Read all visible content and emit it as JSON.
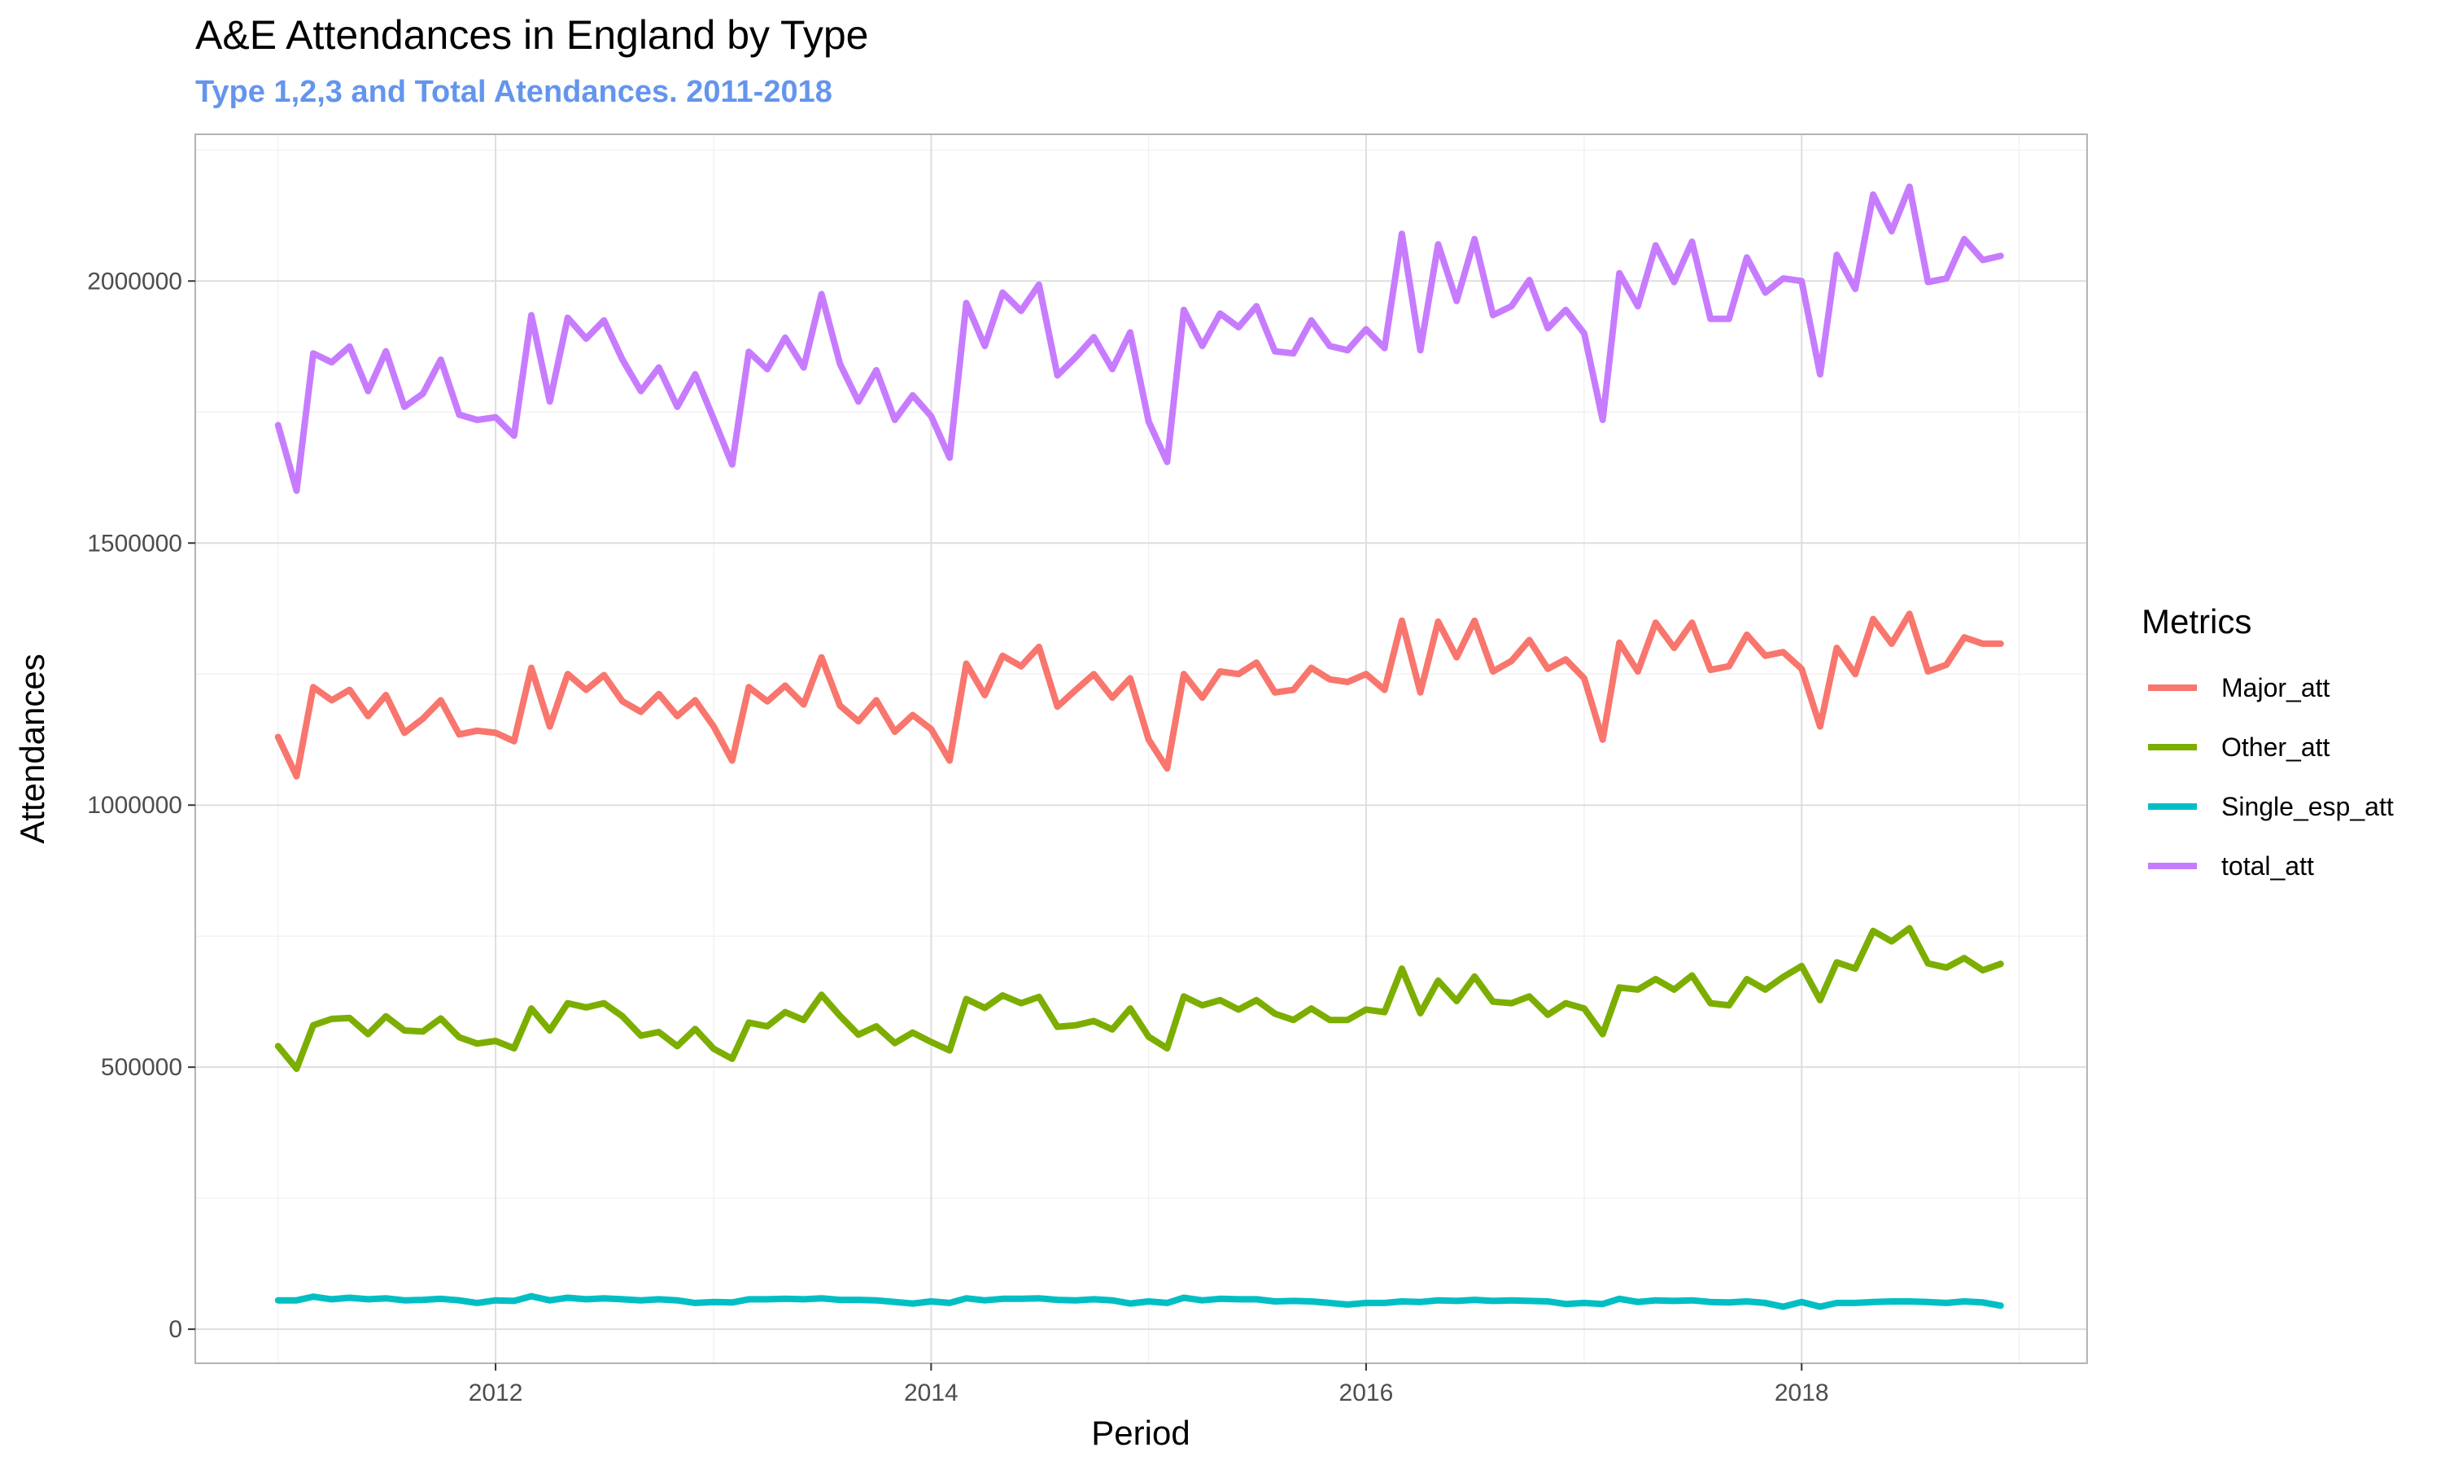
{
  "title": "A&E Attendances in England by Type",
  "subtitle": "Type 1,2,3 and Total Atendances. 2011-2018",
  "chart_data": {
    "type": "line",
    "xlabel": "Period",
    "ylabel": "Attendances",
    "x_ticks": [
      "2012",
      "2014",
      "2016",
      "2018"
    ],
    "y_ticks": [
      0,
      500000,
      1000000,
      1500000,
      2000000
    ],
    "y_tick_labels": [
      "0",
      "500000",
      "1000000",
      "1500000",
      "2000000"
    ],
    "xlim": [
      "2010-08-15",
      "2019-04-25"
    ],
    "ylim": [
      -65000,
      2280000
    ],
    "grid": true,
    "legend": {
      "title": "Metrics",
      "position": "right"
    },
    "x": [
      "2011-01",
      "2011-02",
      "2011-03",
      "2011-04",
      "2011-05",
      "2011-06",
      "2011-07",
      "2011-08",
      "2011-09",
      "2011-10",
      "2011-11",
      "2011-12",
      "2012-01",
      "2012-02",
      "2012-03",
      "2012-04",
      "2012-05",
      "2012-06",
      "2012-07",
      "2012-08",
      "2012-09",
      "2012-10",
      "2012-11",
      "2012-12",
      "2013-01",
      "2013-02",
      "2013-03",
      "2013-04",
      "2013-05",
      "2013-06",
      "2013-07",
      "2013-08",
      "2013-09",
      "2013-10",
      "2013-11",
      "2013-12",
      "2014-01",
      "2014-02",
      "2014-03",
      "2014-04",
      "2014-05",
      "2014-06",
      "2014-07",
      "2014-08",
      "2014-09",
      "2014-10",
      "2014-11",
      "2014-12",
      "2015-01",
      "2015-02",
      "2015-03",
      "2015-04",
      "2015-05",
      "2015-06",
      "2015-07",
      "2015-08",
      "2015-09",
      "2015-10",
      "2015-11",
      "2015-12",
      "2016-01",
      "2016-02",
      "2016-03",
      "2016-04",
      "2016-05",
      "2016-06",
      "2016-07",
      "2016-08",
      "2016-09",
      "2016-10",
      "2016-11",
      "2016-12",
      "2017-01",
      "2017-02",
      "2017-03",
      "2017-04",
      "2017-05",
      "2017-06",
      "2017-07",
      "2017-08",
      "2017-09",
      "2017-10",
      "2017-11",
      "2017-12",
      "2018-01",
      "2018-02",
      "2018-03",
      "2018-04",
      "2018-05",
      "2018-06",
      "2018-07",
      "2018-08",
      "2018-09",
      "2018-10",
      "2018-11",
      "2018-12"
    ],
    "series": [
      {
        "name": "Major_att",
        "color": "#F8766D",
        "values": [
          1130000,
          1055000,
          1225000,
          1200000,
          1220000,
          1170000,
          1210000,
          1138000,
          1165000,
          1200000,
          1135000,
          1142000,
          1138000,
          1122000,
          1262000,
          1150000,
          1250000,
          1220000,
          1248000,
          1198000,
          1178000,
          1212000,
          1170000,
          1200000,
          1150000,
          1085000,
          1225000,
          1198000,
          1228000,
          1192000,
          1282000,
          1190000,
          1160000,
          1200000,
          1140000,
          1172000,
          1145000,
          1085000,
          1270000,
          1210000,
          1285000,
          1265000,
          1302000,
          1188000,
          1220000,
          1250000,
          1205000,
          1242000,
          1125000,
          1070000,
          1250000,
          1205000,
          1255000,
          1250000,
          1272000,
          1215000,
          1220000,
          1262000,
          1240000,
          1235000,
          1250000,
          1220000,
          1352000,
          1215000,
          1350000,
          1282000,
          1352000,
          1255000,
          1275000,
          1315000,
          1260000,
          1278000,
          1242000,
          1125000,
          1310000,
          1255000,
          1348000,
          1300000,
          1348000,
          1258000,
          1265000,
          1325000,
          1285000,
          1292000,
          1260000,
          1150000,
          1300000,
          1250000,
          1355000,
          1308000,
          1365000,
          1255000,
          1268000,
          1320000,
          1308000,
          1308000
        ]
      },
      {
        "name": "Other_att",
        "color": "#7CAE00",
        "values": [
          540000,
          497000,
          580000,
          592000,
          594000,
          563000,
          597000,
          570000,
          568000,
          593000,
          557000,
          545000,
          550000,
          536000,
          612000,
          570000,
          622000,
          614000,
          622000,
          597000,
          560000,
          567000,
          540000,
          573000,
          535000,
          516000,
          585000,
          578000,
          605000,
          590000,
          638000,
          598000,
          562000,
          578000,
          546000,
          566000,
          548000,
          532000,
          630000,
          613000,
          637000,
          622000,
          634000,
          577000,
          580000,
          588000,
          572000,
          612000,
          558000,
          536000,
          635000,
          618000,
          628000,
          610000,
          628000,
          602000,
          590000,
          612000,
          590000,
          590000,
          610000,
          605000,
          688000,
          603000,
          665000,
          626000,
          673000,
          625000,
          622000,
          635000,
          600000,
          622000,
          612000,
          563000,
          652000,
          648000,
          668000,
          648000,
          675000,
          622000,
          618000,
          668000,
          648000,
          672000,
          693000,
          628000,
          700000,
          688000,
          760000,
          740000,
          765000,
          698000,
          690000,
          708000,
          685000,
          697000
        ]
      },
      {
        "name": "Single_esp_att",
        "color": "#00BFC4",
        "values": [
          55000,
          55000,
          62000,
          57000,
          60000,
          57000,
          59000,
          55000,
          56000,
          58000,
          55000,
          50000,
          55000,
          54000,
          63000,
          55000,
          60000,
          57000,
          59000,
          57000,
          55000,
          57000,
          55000,
          50000,
          52000,
          51000,
          57000,
          57000,
          58000,
          57000,
          59000,
          56000,
          56000,
          55000,
          52000,
          49000,
          53000,
          50000,
          59000,
          55000,
          58000,
          58000,
          59000,
          56000,
          55000,
          57000,
          55000,
          49000,
          53000,
          50000,
          60000,
          55000,
          58000,
          57000,
          57000,
          53000,
          54000,
          53000,
          50000,
          47000,
          50000,
          50000,
          53000,
          52000,
          55000,
          54000,
          56000,
          54000,
          55000,
          54000,
          53000,
          48000,
          50000,
          48000,
          58000,
          52000,
          55000,
          54000,
          55000,
          52000,
          51000,
          53000,
          50000,
          43000,
          52000,
          43000,
          50000,
          50000,
          52000,
          53000,
          53000,
          52000,
          50000,
          53000,
          51000,
          45000
        ]
      },
      {
        "name": "total_att",
        "color": "#C77CFF",
        "values": [
          1725000,
          1600000,
          1862000,
          1845000,
          1875000,
          1790000,
          1866000,
          1760000,
          1785000,
          1850000,
          1745000,
          1735000,
          1740000,
          1705000,
          1935000,
          1770000,
          1930000,
          1890000,
          1925000,
          1850000,
          1790000,
          1835000,
          1760000,
          1822000,
          1737000,
          1650000,
          1865000,
          1832000,
          1892000,
          1835000,
          1975000,
          1842000,
          1770000,
          1830000,
          1735000,
          1782000,
          1742000,
          1663000,
          1958000,
          1876000,
          1978000,
          1943000,
          1993000,
          1820000,
          1855000,
          1893000,
          1832000,
          1902000,
          1732000,
          1655000,
          1945000,
          1876000,
          1938000,
          1912000,
          1952000,
          1866000,
          1862000,
          1925000,
          1876000,
          1868000,
          1908000,
          1872000,
          2090000,
          1868000,
          2070000,
          1962000,
          2080000,
          1935000,
          1952000,
          2002000,
          1910000,
          1945000,
          1900000,
          1735000,
          2015000,
          1952000,
          2068000,
          1998000,
          2075000,
          1928000,
          1928000,
          2045000,
          1978000,
          2005000,
          2000000,
          1822000,
          2050000,
          1985000,
          2165000,
          2095000,
          2180000,
          1998000,
          2005000,
          2080000,
          2040000,
          2048000
        ]
      }
    ]
  }
}
